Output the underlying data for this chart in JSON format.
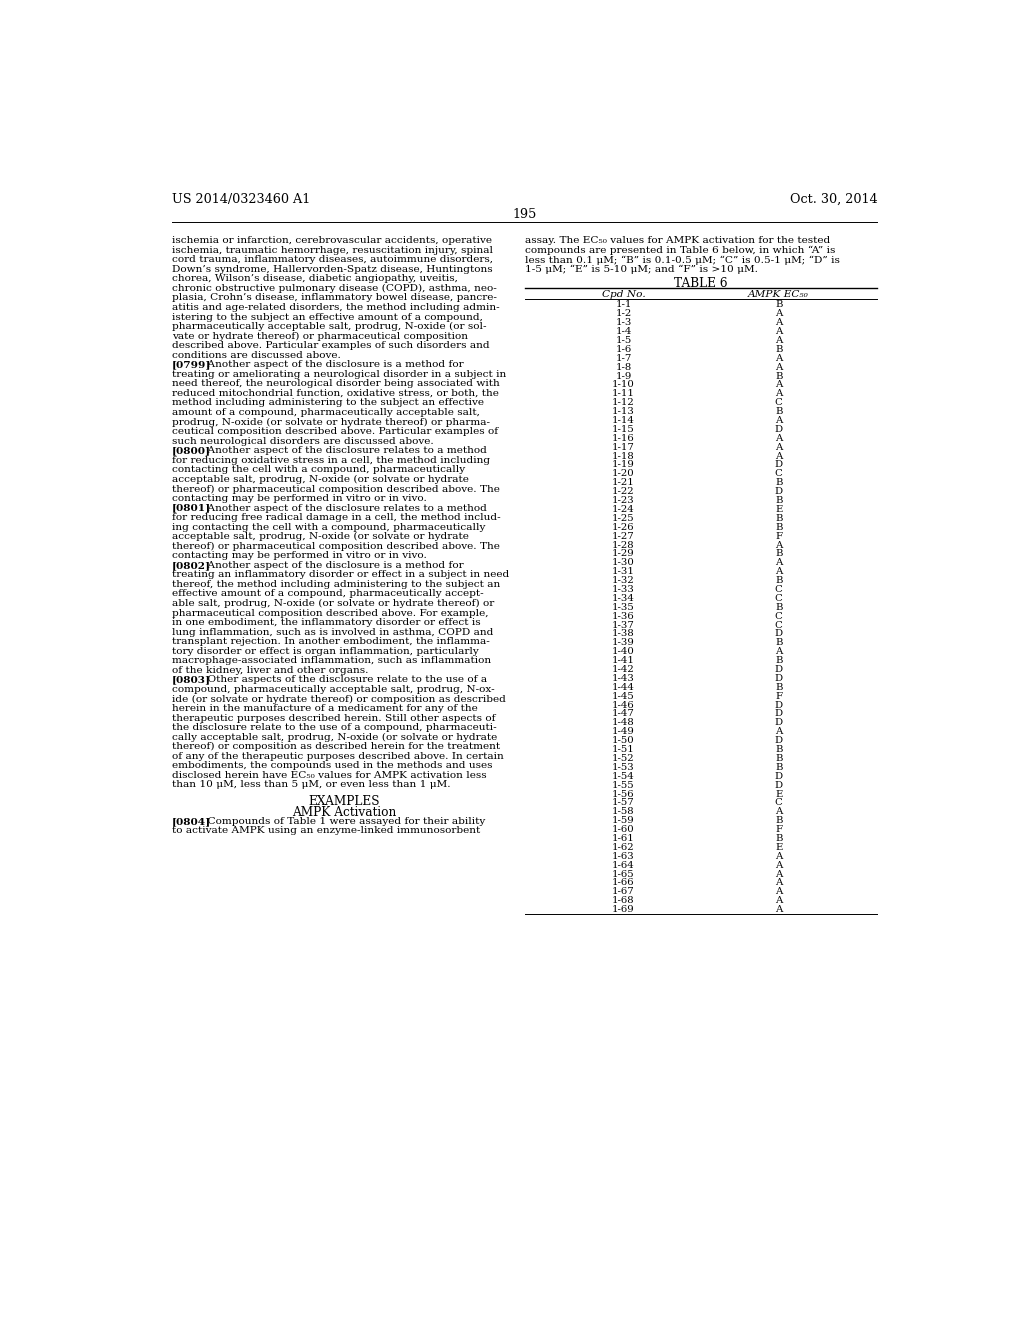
{
  "page_number": "195",
  "header_left": "US 2014/0323460 A1",
  "header_right": "Oct. 30, 2014",
  "background_color": "#ffffff",
  "left_column_text": [
    {
      "text": "ischemia or infarction, cerebrovascular accidents, operative",
      "bold_prefix": ""
    },
    {
      "text": "ischemia, traumatic hemorrhage, resuscitation injury, spinal",
      "bold_prefix": ""
    },
    {
      "text": "cord trauma, inflammatory diseases, autoimmune disorders,",
      "bold_prefix": ""
    },
    {
      "text": "Down’s syndrome, Hallervorden-Spatz disease, Huntingtons",
      "bold_prefix": ""
    },
    {
      "text": "chorea, Wilson’s disease, diabetic angiopathy, uveitis,",
      "bold_prefix": ""
    },
    {
      "text": "chronic obstructive pulmonary disease (COPD), asthma, neo-",
      "bold_prefix": ""
    },
    {
      "text": "plasia, Crohn’s disease, inflammatory bowel disease, pancre-",
      "bold_prefix": ""
    },
    {
      "text": "atitis and age-related disorders, the method including admin-",
      "bold_prefix": ""
    },
    {
      "text": "istering to the subject an effective amount of a compound,",
      "bold_prefix": ""
    },
    {
      "text": "pharmaceutically acceptable salt, prodrug, N-oxide (or sol-",
      "bold_prefix": ""
    },
    {
      "text": "vate or hydrate thereof) or pharmaceutical composition",
      "bold_prefix": ""
    },
    {
      "text": "described above. Particular examples of such disorders and",
      "bold_prefix": ""
    },
    {
      "text": "conditions are discussed above.",
      "bold_prefix": ""
    },
    {
      "text": "[0799]    Another aspect of the disclosure is a method for",
      "bold_prefix": "[0799]"
    },
    {
      "text": "treating or ameliorating a neurological disorder in a subject in",
      "bold_prefix": ""
    },
    {
      "text": "need thereof, the neurological disorder being associated with",
      "bold_prefix": ""
    },
    {
      "text": "reduced mitochondrial function, oxidative stress, or both, the",
      "bold_prefix": ""
    },
    {
      "text": "method including administering to the subject an effective",
      "bold_prefix": ""
    },
    {
      "text": "amount of a compound, pharmaceutically acceptable salt,",
      "bold_prefix": ""
    },
    {
      "text": "prodrug, N-oxide (or solvate or hydrate thereof) or pharma-",
      "bold_prefix": ""
    },
    {
      "text": "ceutical composition described above. Particular examples of",
      "bold_prefix": ""
    },
    {
      "text": "such neurological disorders are discussed above.",
      "bold_prefix": ""
    },
    {
      "text": "[0800]    Another aspect of the disclosure relates to a method",
      "bold_prefix": "[0800]"
    },
    {
      "text": "for reducing oxidative stress in a cell, the method including",
      "bold_prefix": ""
    },
    {
      "text": "contacting the cell with a compound, pharmaceutically",
      "bold_prefix": ""
    },
    {
      "text": "acceptable salt, prodrug, N-oxide (or solvate or hydrate",
      "bold_prefix": ""
    },
    {
      "text": "thereof) or pharmaceutical composition described above. The",
      "bold_prefix": ""
    },
    {
      "text": "contacting may be performed in vitro or in vivo.",
      "bold_prefix": ""
    },
    {
      "text": "[0801]    Another aspect of the disclosure relates to a method",
      "bold_prefix": "[0801]"
    },
    {
      "text": "for reducing free radical damage in a cell, the method includ-",
      "bold_prefix": ""
    },
    {
      "text": "ing contacting the cell with a compound, pharmaceutically",
      "bold_prefix": ""
    },
    {
      "text": "acceptable salt, prodrug, N-oxide (or solvate or hydrate",
      "bold_prefix": ""
    },
    {
      "text": "thereof) or pharmaceutical composition described above. The",
      "bold_prefix": ""
    },
    {
      "text": "contacting may be performed in vitro or in vivo.",
      "bold_prefix": ""
    },
    {
      "text": "[0802]    Another aspect of the disclosure is a method for",
      "bold_prefix": "[0802]"
    },
    {
      "text": "treating an inflammatory disorder or effect in a subject in need",
      "bold_prefix": ""
    },
    {
      "text": "thereof, the method including administering to the subject an",
      "bold_prefix": ""
    },
    {
      "text": "effective amount of a compound, pharmaceutically accept-",
      "bold_prefix": ""
    },
    {
      "text": "able salt, prodrug, N-oxide (or solvate or hydrate thereof) or",
      "bold_prefix": ""
    },
    {
      "text": "pharmaceutical composition described above. For example,",
      "bold_prefix": ""
    },
    {
      "text": "in one embodiment, the inflammatory disorder or effect is",
      "bold_prefix": ""
    },
    {
      "text": "lung inflammation, such as is involved in asthma, COPD and",
      "bold_prefix": ""
    },
    {
      "text": "transplant rejection. In another embodiment, the inflamma-",
      "bold_prefix": ""
    },
    {
      "text": "tory disorder or effect is organ inflammation, particularly",
      "bold_prefix": ""
    },
    {
      "text": "macrophage-associated inflammation, such as inflammation",
      "bold_prefix": ""
    },
    {
      "text": "of the kidney, liver and other organs.",
      "bold_prefix": ""
    },
    {
      "text": "[0803]    Other aspects of the disclosure relate to the use of a",
      "bold_prefix": "[0803]"
    },
    {
      "text": "compound, pharmaceutically acceptable salt, prodrug, N-ox-",
      "bold_prefix": ""
    },
    {
      "text": "ide (or solvate or hydrate thereof) or composition as described",
      "bold_prefix": ""
    },
    {
      "text": "herein in the manufacture of a medicament for any of the",
      "bold_prefix": ""
    },
    {
      "text": "therapeutic purposes described herein. Still other aspects of",
      "bold_prefix": ""
    },
    {
      "text": "the disclosure relate to the use of a compound, pharmaceuti-",
      "bold_prefix": ""
    },
    {
      "text": "cally acceptable salt, prodrug, N-oxide (or solvate or hydrate",
      "bold_prefix": ""
    },
    {
      "text": "thereof) or composition as described herein for the treatment",
      "bold_prefix": ""
    },
    {
      "text": "of any of the therapeutic purposes described above. In certain",
      "bold_prefix": ""
    },
    {
      "text": "embodiments, the compounds used in the methods and uses",
      "bold_prefix": ""
    },
    {
      "text": "disclosed herein have EC₅₀ values for AMPK activation less",
      "bold_prefix": ""
    },
    {
      "text": "than 10 μM, less than 5 μM, or even less than 1 μM.",
      "bold_prefix": ""
    }
  ],
  "examples_header": "EXAMPLES",
  "ampk_activation_header": "AMPK Activation",
  "paragraph_0804_bold": "[0804]",
  "paragraph_0804_rest": "    Compounds of Table 1 were assayed for their ability",
  "paragraph_0804_line2": "to activate AMPK using an enzyme-linked immunosorbent",
  "right_column_intro": [
    "assay. The EC₅₀ values for AMPK activation for the tested",
    "compounds are presented in Table 6 below, in which “A” is",
    "less than 0.1 μM; “B” is 0.1-0.5 μM; “C” is 0.5-1 μM; “D” is",
    "1-5 μM; “E” is 5-10 μM; and “F” is >10 μM."
  ],
  "table_title": "TABLE 6",
  "table_col1_header": "Cpd No.",
  "table_col2_header": "AMPK EC₅₀",
  "table_data": [
    [
      "1-1",
      "B"
    ],
    [
      "1-2",
      "A"
    ],
    [
      "1-3",
      "A"
    ],
    [
      "1-4",
      "A"
    ],
    [
      "1-5",
      "A"
    ],
    [
      "1-6",
      "B"
    ],
    [
      "1-7",
      "A"
    ],
    [
      "1-8",
      "A"
    ],
    [
      "1-9",
      "B"
    ],
    [
      "1-10",
      "A"
    ],
    [
      "1-11",
      "A"
    ],
    [
      "1-12",
      "C"
    ],
    [
      "1-13",
      "B"
    ],
    [
      "1-14",
      "A"
    ],
    [
      "1-15",
      "D"
    ],
    [
      "1-16",
      "A"
    ],
    [
      "1-17",
      "A"
    ],
    [
      "1-18",
      "A"
    ],
    [
      "1-19",
      "D"
    ],
    [
      "1-20",
      "C"
    ],
    [
      "1-21",
      "B"
    ],
    [
      "1-22",
      "D"
    ],
    [
      "1-23",
      "B"
    ],
    [
      "1-24",
      "E"
    ],
    [
      "1-25",
      "B"
    ],
    [
      "1-26",
      "B"
    ],
    [
      "1-27",
      "F"
    ],
    [
      "1-28",
      "A"
    ],
    [
      "1-29",
      "B"
    ],
    [
      "1-30",
      "A"
    ],
    [
      "1-31",
      "A"
    ],
    [
      "1-32",
      "B"
    ],
    [
      "1-33",
      "C"
    ],
    [
      "1-34",
      "C"
    ],
    [
      "1-35",
      "B"
    ],
    [
      "1-36",
      "C"
    ],
    [
      "1-37",
      "C"
    ],
    [
      "1-38",
      "D"
    ],
    [
      "1-39",
      "B"
    ],
    [
      "1-40",
      "A"
    ],
    [
      "1-41",
      "B"
    ],
    [
      "1-42",
      "D"
    ],
    [
      "1-43",
      "D"
    ],
    [
      "1-44",
      "B"
    ],
    [
      "1-45",
      "F"
    ],
    [
      "1-46",
      "D"
    ],
    [
      "1-47",
      "D"
    ],
    [
      "1-48",
      "D"
    ],
    [
      "1-49",
      "A"
    ],
    [
      "1-50",
      "D"
    ],
    [
      "1-51",
      "B"
    ],
    [
      "1-52",
      "B"
    ],
    [
      "1-53",
      "B"
    ],
    [
      "1-54",
      "D"
    ],
    [
      "1-55",
      "D"
    ],
    [
      "1-56",
      "E"
    ],
    [
      "1-57",
      "C"
    ],
    [
      "1-58",
      "A"
    ],
    [
      "1-59",
      "B"
    ],
    [
      "1-60",
      "F"
    ],
    [
      "1-61",
      "B"
    ],
    [
      "1-62",
      "E"
    ],
    [
      "1-63",
      "A"
    ],
    [
      "1-64",
      "A"
    ],
    [
      "1-65",
      "A"
    ],
    [
      "1-66",
      "A"
    ],
    [
      "1-67",
      "A"
    ],
    [
      "1-68",
      "A"
    ],
    [
      "1-69",
      "A"
    ]
  ]
}
